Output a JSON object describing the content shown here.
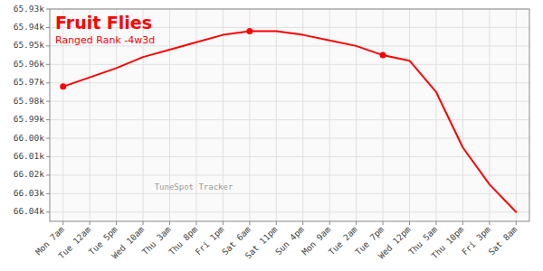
{
  "chart_data": {
    "type": "line",
    "title": "Fruit Flies",
    "subtitle": "Ranged Rank -4w3d",
    "annotations": [
      "TuneSpot Tracker"
    ],
    "color": "#ff0000",
    "marker": "circle",
    "marker_indices": [
      0,
      7,
      12
    ],
    "categories": [
      "Mon 7am",
      "Tue 12am",
      "Tue 5pm",
      "Wed 10am",
      "Thu 3am",
      "Thu 8pm",
      "Fri 1pm",
      "Sat 6am",
      "Sat 11pm",
      "Sun 4pm",
      "Mon 9am",
      "Tue 2am",
      "Tue 7pm",
      "Wed 12pm",
      "Thu 5am",
      "Thu 10pm",
      "Fri 3pm",
      "Sat 8am"
    ],
    "values": [
      65972,
      65967,
      65962,
      65956,
      65952,
      65948,
      65944,
      65942,
      65942,
      65944,
      65947,
      65950,
      65955,
      65958,
      65975,
      66005,
      66025,
      66040
    ],
    "ylim": [
      66045,
      65930
    ],
    "yticks": [
      {
        "value": 65930,
        "label": "65.93k"
      },
      {
        "value": 65940,
        "label": "65.94k"
      },
      {
        "value": 65950,
        "label": "65.95k"
      },
      {
        "value": 65960,
        "label": "65.96k"
      },
      {
        "value": 65970,
        "label": "65.97k"
      },
      {
        "value": 65980,
        "label": "65.98k"
      },
      {
        "value": 65990,
        "label": "65.99k"
      },
      {
        "value": 66000,
        "label": "66.00k"
      },
      {
        "value": 66010,
        "label": "66.01k"
      },
      {
        "value": 66020,
        "label": "66.02k"
      },
      {
        "value": 66030,
        "label": "66.03k"
      },
      {
        "value": 66040,
        "label": "66.04k"
      }
    ],
    "grid": true
  }
}
